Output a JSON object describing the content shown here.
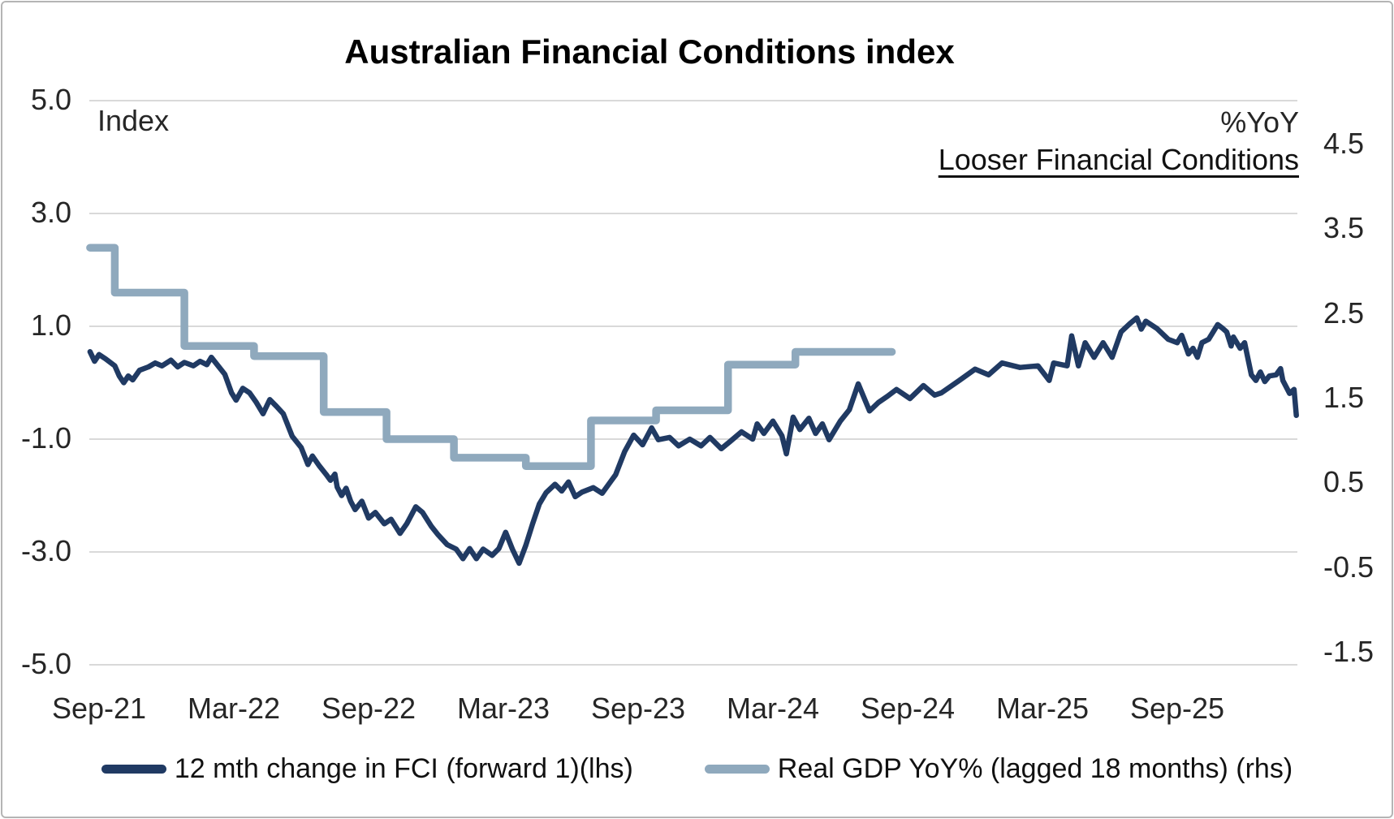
{
  "window": {
    "background": "#ffffff",
    "border_color": "#b5b5b5"
  },
  "chart_data": {
    "type": "line",
    "title": "Australian Financial Conditions index",
    "annotation": "Looser Financial Conditions",
    "grid": "horizontal-only",
    "grid_color": "#d9d9d9",
    "left_axis": {
      "unit_label": "Index",
      "range": [
        -5.0,
        5.0
      ],
      "ticks": [
        {
          "label": "5.0",
          "value": 5
        },
        {
          "label": "3.0",
          "value": 3
        },
        {
          "label": "1.0",
          "value": 1
        },
        {
          "label": "-1.0",
          "value": -1
        },
        {
          "label": "-3.0",
          "value": -3
        },
        {
          "label": "-5.0",
          "value": -5
        }
      ]
    },
    "right_axis": {
      "unit_label": "%YoY",
      "range": [
        -1.5,
        4.5
      ],
      "ticks": [
        {
          "label": "4.5",
          "value": 4.5
        },
        {
          "label": "3.5",
          "value": 3.5
        },
        {
          "label": "2.5",
          "value": 2.5
        },
        {
          "label": "1.5",
          "value": 1.5
        },
        {
          "label": "0.5",
          "value": 0.5
        },
        {
          "label": "-0.5",
          "value": -0.5
        },
        {
          "label": "-1.5",
          "value": -1.5
        }
      ]
    },
    "x_axis": {
      "unit": "months since Sep-2021",
      "ticks": [
        {
          "label": "Sep-21",
          "m": 0
        },
        {
          "label": "Mar-22",
          "m": 6
        },
        {
          "label": "Sep-22",
          "m": 12
        },
        {
          "label": "Mar-23",
          "m": 18
        },
        {
          "label": "Sep-23",
          "m": 24
        },
        {
          "label": "Mar-24",
          "m": 30
        },
        {
          "label": "Sep-24",
          "m": 36
        },
        {
          "label": "Mar-25",
          "m": 42
        },
        {
          "label": "Sep-25",
          "m": 48
        }
      ]
    },
    "legend": [
      {
        "label": "12 mth change in FCI (forward 1)(lhs)",
        "color": "#203a63"
      },
      {
        "label": "Real GDP YoY% (lagged 18 months) (rhs)",
        "color": "#8fa9bd"
      }
    ],
    "series": [
      {
        "name": "12 mth change in FCI (forward 1)(lhs)",
        "axis": "left",
        "style": "line",
        "color": "#203a63",
        "stroke_width": 6.5,
        "points": [
          [
            -0.4,
            0.55
          ],
          [
            -0.2,
            0.38
          ],
          [
            0.0,
            0.5
          ],
          [
            0.3,
            0.42
          ],
          [
            0.7,
            0.3
          ],
          [
            0.9,
            0.12
          ],
          [
            1.1,
            0.0
          ],
          [
            1.3,
            0.12
          ],
          [
            1.5,
            0.05
          ],
          [
            1.8,
            0.22
          ],
          [
            2.2,
            0.28
          ],
          [
            2.5,
            0.35
          ],
          [
            2.8,
            0.3
          ],
          [
            3.2,
            0.4
          ],
          [
            3.5,
            0.28
          ],
          [
            3.8,
            0.36
          ],
          [
            4.2,
            0.3
          ],
          [
            4.5,
            0.38
          ],
          [
            4.8,
            0.32
          ],
          [
            5.0,
            0.45
          ],
          [
            5.3,
            0.3
          ],
          [
            5.6,
            0.15
          ],
          [
            5.9,
            -0.18
          ],
          [
            6.1,
            -0.31
          ],
          [
            6.4,
            -0.1
          ],
          [
            6.7,
            -0.18
          ],
          [
            7.0,
            -0.35
          ],
          [
            7.3,
            -0.55
          ],
          [
            7.6,
            -0.3
          ],
          [
            7.9,
            -0.42
          ],
          [
            8.2,
            -0.55
          ],
          [
            8.6,
            -0.95
          ],
          [
            9.0,
            -1.15
          ],
          [
            9.3,
            -1.45
          ],
          [
            9.5,
            -1.3
          ],
          [
            9.8,
            -1.47
          ],
          [
            10.1,
            -1.62
          ],
          [
            10.3,
            -1.73
          ],
          [
            10.5,
            -1.62
          ],
          [
            10.6,
            -1.85
          ],
          [
            10.8,
            -2.0
          ],
          [
            11.0,
            -1.87
          ],
          [
            11.2,
            -2.1
          ],
          [
            11.4,
            -2.25
          ],
          [
            11.7,
            -2.1
          ],
          [
            12.0,
            -2.4
          ],
          [
            12.3,
            -2.3
          ],
          [
            12.7,
            -2.5
          ],
          [
            13.0,
            -2.42
          ],
          [
            13.4,
            -2.67
          ],
          [
            13.7,
            -2.5
          ],
          [
            14.1,
            -2.2
          ],
          [
            14.4,
            -2.3
          ],
          [
            14.8,
            -2.55
          ],
          [
            15.1,
            -2.7
          ],
          [
            15.5,
            -2.87
          ],
          [
            15.9,
            -2.95
          ],
          [
            16.2,
            -3.12
          ],
          [
            16.5,
            -2.94
          ],
          [
            16.8,
            -3.12
          ],
          [
            17.1,
            -2.95
          ],
          [
            17.5,
            -3.06
          ],
          [
            17.8,
            -2.94
          ],
          [
            18.1,
            -2.65
          ],
          [
            18.4,
            -2.95
          ],
          [
            18.7,
            -3.2
          ],
          [
            19.0,
            -2.88
          ],
          [
            19.3,
            -2.5
          ],
          [
            19.6,
            -2.15
          ],
          [
            19.9,
            -1.95
          ],
          [
            20.3,
            -1.8
          ],
          [
            20.6,
            -1.92
          ],
          [
            20.9,
            -1.76
          ],
          [
            21.2,
            -2.02
          ],
          [
            21.5,
            -1.94
          ],
          [
            22.0,
            -1.86
          ],
          [
            22.4,
            -1.96
          ],
          [
            22.8,
            -1.74
          ],
          [
            23.0,
            -1.63
          ],
          [
            23.4,
            -1.22
          ],
          [
            23.8,
            -0.93
          ],
          [
            24.2,
            -1.1
          ],
          [
            24.6,
            -0.8
          ],
          [
            24.9,
            -1.01
          ],
          [
            25.4,
            -0.97
          ],
          [
            25.8,
            -1.12
          ],
          [
            26.3,
            -1.0
          ],
          [
            26.8,
            -1.12
          ],
          [
            27.2,
            -0.97
          ],
          [
            27.7,
            -1.17
          ],
          [
            28.1,
            -1.04
          ],
          [
            28.6,
            -0.87
          ],
          [
            29.1,
            -1.0
          ],
          [
            29.3,
            -0.73
          ],
          [
            29.6,
            -0.9
          ],
          [
            30.0,
            -0.68
          ],
          [
            30.4,
            -0.94
          ],
          [
            30.6,
            -1.26
          ],
          [
            30.9,
            -0.61
          ],
          [
            31.2,
            -0.83
          ],
          [
            31.6,
            -0.63
          ],
          [
            31.9,
            -0.9
          ],
          [
            32.2,
            -0.73
          ],
          [
            32.5,
            -1.01
          ],
          [
            33.0,
            -0.68
          ],
          [
            33.4,
            -0.48
          ],
          [
            33.8,
            -0.02
          ],
          [
            34.3,
            -0.5
          ],
          [
            34.7,
            -0.35
          ],
          [
            35.1,
            -0.24
          ],
          [
            35.5,
            -0.12
          ],
          [
            36.1,
            -0.28
          ],
          [
            36.7,
            -0.05
          ],
          [
            37.2,
            -0.22
          ],
          [
            37.5,
            -0.18
          ],
          [
            38.3,
            0.04
          ],
          [
            39.0,
            0.24
          ],
          [
            39.6,
            0.14
          ],
          [
            40.2,
            0.35
          ],
          [
            41.0,
            0.27
          ],
          [
            41.8,
            0.3
          ],
          [
            42.3,
            0.04
          ],
          [
            42.5,
            0.35
          ],
          [
            43.1,
            0.3
          ],
          [
            43.3,
            0.83
          ],
          [
            43.6,
            0.3
          ],
          [
            43.9,
            0.71
          ],
          [
            44.3,
            0.45
          ],
          [
            44.7,
            0.71
          ],
          [
            45.1,
            0.45
          ],
          [
            45.5,
            0.9
          ],
          [
            45.9,
            1.05
          ],
          [
            46.2,
            1.15
          ],
          [
            46.4,
            0.95
          ],
          [
            46.6,
            1.09
          ],
          [
            47.1,
            0.96
          ],
          [
            47.6,
            0.77
          ],
          [
            48.0,
            0.71
          ],
          [
            48.2,
            0.84
          ],
          [
            48.5,
            0.51
          ],
          [
            48.7,
            0.61
          ],
          [
            48.9,
            0.45
          ],
          [
            49.1,
            0.71
          ],
          [
            49.4,
            0.77
          ],
          [
            49.8,
            1.03
          ],
          [
            50.0,
            0.97
          ],
          [
            50.2,
            0.9
          ],
          [
            50.4,
            0.65
          ],
          [
            50.5,
            0.81
          ],
          [
            50.8,
            0.61
          ],
          [
            51.0,
            0.71
          ],
          [
            51.3,
            0.14
          ],
          [
            51.5,
            0.04
          ],
          [
            51.7,
            0.19
          ],
          [
            51.9,
            0.02
          ],
          [
            52.1,
            0.12
          ],
          [
            52.4,
            0.14
          ],
          [
            52.6,
            0.25
          ],
          [
            52.7,
            0.04
          ],
          [
            53.0,
            -0.19
          ],
          [
            53.2,
            -0.12
          ],
          [
            53.3,
            -0.58
          ]
        ]
      },
      {
        "name": "Real GDP YoY% (lagged 18 months) (rhs)",
        "axis": "right",
        "style": "step",
        "color": "#8fa9bd",
        "stroke_width": 9.5,
        "segments": [
          {
            "from": -0.4,
            "to": 0.7,
            "value": 3.28
          },
          {
            "from": 0.7,
            "to": 3.8,
            "value": 2.75
          },
          {
            "from": 3.8,
            "to": 6.9,
            "value": 2.12
          },
          {
            "from": 6.9,
            "to": 10.0,
            "value": 2.0
          },
          {
            "from": 10.0,
            "to": 12.8,
            "value": 1.34
          },
          {
            "from": 12.8,
            "to": 15.8,
            "value": 1.02
          },
          {
            "from": 15.8,
            "to": 19.0,
            "value": 0.8
          },
          {
            "from": 19.0,
            "to": 21.9,
            "value": 0.7
          },
          {
            "from": 21.9,
            "to": 24.8,
            "value": 1.24
          },
          {
            "from": 24.8,
            "to": 28.0,
            "value": 1.36
          },
          {
            "from": 28.0,
            "to": 31.0,
            "value": 1.9
          },
          {
            "from": 31.0,
            "to": 35.3,
            "value": 2.05
          }
        ]
      }
    ]
  }
}
